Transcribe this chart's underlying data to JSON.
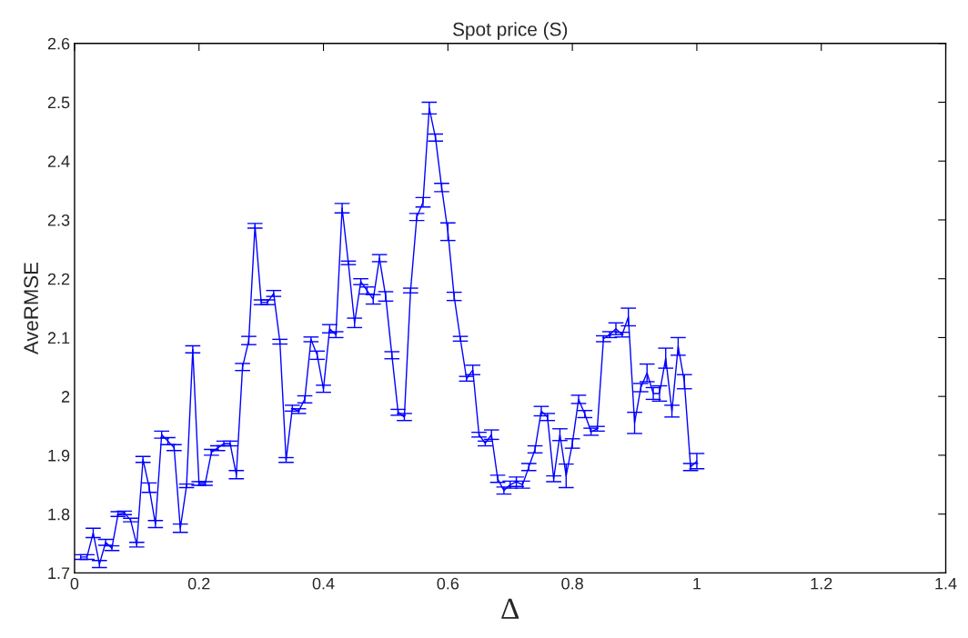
{
  "chart_data": {
    "type": "line",
    "title": "Spot price (S)",
    "xlabel": "Δ",
    "ylabel": "AveRMSE",
    "x": [
      0.01,
      0.02,
      0.03,
      0.04,
      0.05,
      0.06,
      0.07,
      0.08,
      0.09,
      0.1,
      0.11,
      0.12,
      0.13,
      0.14,
      0.15,
      0.16,
      0.17,
      0.18,
      0.19,
      0.2,
      0.21,
      0.22,
      0.23,
      0.24,
      0.25,
      0.26,
      0.27,
      0.28,
      0.29,
      0.3,
      0.31,
      0.32,
      0.33,
      0.34,
      0.35,
      0.36,
      0.37,
      0.38,
      0.39,
      0.4,
      0.41,
      0.42,
      0.43,
      0.44,
      0.45,
      0.46,
      0.47,
      0.48,
      0.49,
      0.5,
      0.51,
      0.52,
      0.53,
      0.54,
      0.55,
      0.56,
      0.57,
      0.58,
      0.59,
      0.6,
      0.61,
      0.62,
      0.63,
      0.64,
      0.65,
      0.66,
      0.67,
      0.68,
      0.69,
      0.7,
      0.71,
      0.72,
      0.73,
      0.74,
      0.75,
      0.76,
      0.77,
      0.78,
      0.79,
      0.8,
      0.81,
      0.82,
      0.83,
      0.84,
      0.85,
      0.86,
      0.87,
      0.88,
      0.89,
      0.9,
      0.91,
      0.92,
      0.93,
      0.94,
      0.95,
      0.96,
      0.97,
      0.98,
      0.99,
      1.0
    ],
    "series": [
      {
        "color": "#0000ff",
        "values": [
          1.727,
          1.727,
          1.768,
          1.715,
          1.752,
          1.742,
          1.8,
          1.802,
          1.79,
          1.748,
          1.893,
          1.845,
          1.783,
          1.935,
          1.924,
          1.913,
          1.776,
          1.848,
          2.08,
          1.852,
          1.852,
          1.905,
          1.912,
          1.92,
          1.92,
          1.867,
          2.05,
          2.095,
          2.29,
          2.16,
          2.16,
          2.175,
          2.093,
          1.892,
          1.98,
          1.975,
          1.995,
          2.097,
          2.07,
          2.013,
          2.115,
          2.105,
          2.32,
          2.227,
          2.125,
          2.195,
          2.18,
          2.165,
          2.235,
          2.17,
          2.07,
          1.973,
          1.965,
          2.18,
          2.305,
          2.33,
          2.49,
          2.44,
          2.355,
          2.28,
          2.17,
          2.098,
          2.03,
          2.045,
          1.935,
          1.92,
          1.935,
          1.86,
          1.84,
          1.85,
          1.855,
          1.85,
          1.88,
          1.91,
          1.975,
          1.965,
          1.86,
          1.935,
          1.865,
          1.92,
          1.995,
          1.97,
          1.94,
          1.945,
          2.098,
          2.105,
          2.115,
          2.105,
          2.135,
          1.955,
          2.015,
          2.04,
          2.005,
          2.005,
          2.065,
          1.975,
          2.085,
          2.025,
          1.88,
          1.89
        ],
        "errors": [
          0.004,
          0.004,
          0.008,
          0.006,
          0.005,
          0.004,
          0.004,
          0.003,
          0.003,
          0.004,
          0.005,
          0.008,
          0.006,
          0.006,
          0.006,
          0.005,
          0.007,
          0.003,
          0.006,
          0.003,
          0.003,
          0.005,
          0.004,
          0.004,
          0.004,
          0.007,
          0.006,
          0.007,
          0.004,
          0.004,
          0.004,
          0.005,
          0.004,
          0.004,
          0.005,
          0.004,
          0.006,
          0.004,
          0.007,
          0.006,
          0.007,
          0.005,
          0.008,
          0.003,
          0.008,
          0.005,
          0.006,
          0.008,
          0.006,
          0.008,
          0.006,
          0.005,
          0.006,
          0.004,
          0.006,
          0.008,
          0.01,
          0.006,
          0.007,
          0.015,
          0.007,
          0.004,
          0.004,
          0.008,
          0.004,
          0.004,
          0.008,
          0.006,
          0.006,
          0.006,
          0.008,
          0.006,
          0.006,
          0.006,
          0.008,
          0.006,
          0.005,
          0.01,
          0.02,
          0.008,
          0.007,
          0.006,
          0.006,
          0.004,
          0.005,
          0.005,
          0.01,
          0.004,
          0.015,
          0.018,
          0.007,
          0.015,
          0.01,
          0.013,
          0.017,
          0.01,
          0.015,
          0.012,
          0.006,
          0.013
        ]
      }
    ],
    "xlim": [
      0,
      1.4
    ],
    "xticks": [
      0,
      0.2,
      0.4,
      0.6,
      0.8,
      1,
      1.2,
      1.4
    ],
    "ylim": [
      1.7,
      2.6
    ],
    "yticks": [
      1.7,
      1.8,
      1.9,
      2,
      2.1,
      2.2,
      2.3,
      2.4,
      2.5,
      2.6
    ],
    "grid": false,
    "marker": "none",
    "line_style": "solid"
  }
}
